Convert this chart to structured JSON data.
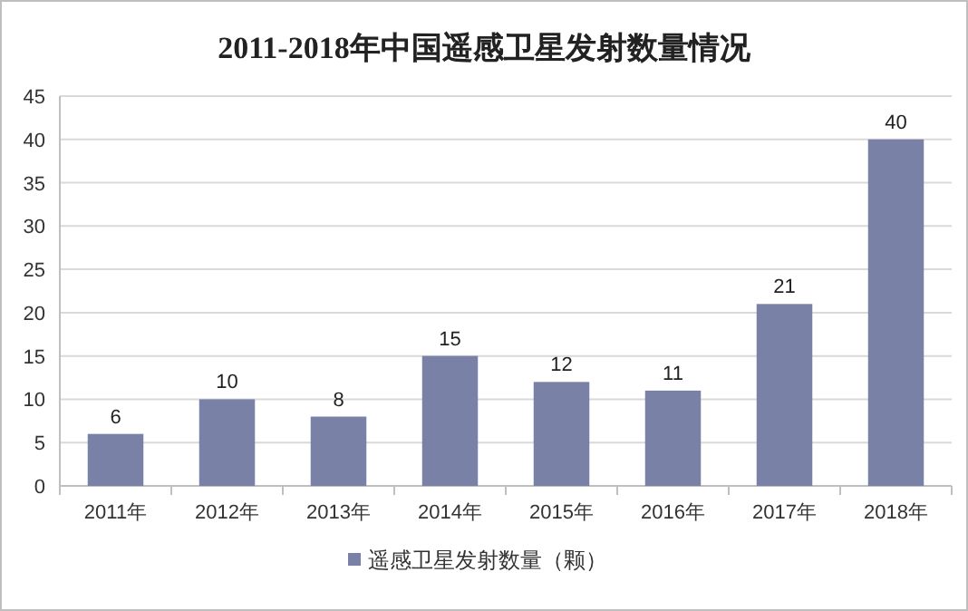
{
  "chart_data": {
    "type": "bar",
    "title": "2011-2018年中国遥感卫星发射数量情况",
    "categories": [
      "2011年",
      "2012年",
      "2013年",
      "2014年",
      "2015年",
      "2016年",
      "2017年",
      "2018年"
    ],
    "series": [
      {
        "name": "遥感卫星发射数量（颗）",
        "color": "#7a81a6",
        "values": [
          6,
          10,
          8,
          15,
          12,
          11,
          21,
          40
        ]
      }
    ],
    "ylim": [
      0,
      45
    ],
    "yticks": [
      0,
      5,
      10,
      15,
      20,
      25,
      30,
      35,
      40,
      45
    ],
    "grid": "y",
    "legend": "bottom",
    "data_labels": true
  }
}
